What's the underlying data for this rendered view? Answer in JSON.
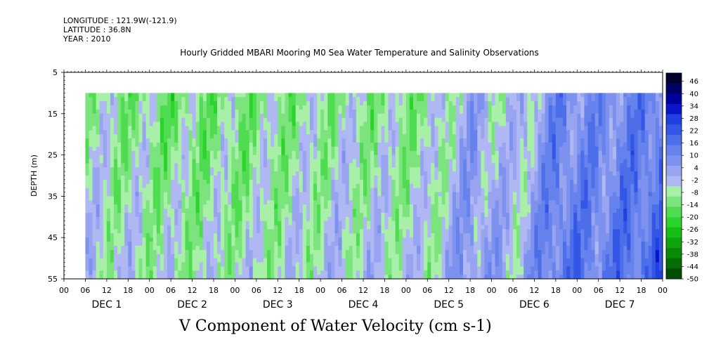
{
  "header": {
    "longitude": "LONGITUDE : 121.9W(-121.9)",
    "latitude": "LATITUDE : 36.8N",
    "year": "YEAR : 2010"
  },
  "chart_data": {
    "type": "heatmap",
    "title": "Hourly Gridded MBARI Mooring M0 Sea Water Temperature and Salinity Observations",
    "bottom_title": "V Component of Water Velocity (cm s-1)",
    "ylabel": "DEPTH (m)",
    "ylim": [
      5,
      55
    ],
    "y_inverted": true,
    "y_ticks": [
      5,
      15,
      25,
      35,
      45,
      55
    ],
    "x_hour_ticks": [
      "00",
      "06",
      "12",
      "18",
      "00",
      "06",
      "12",
      "18",
      "00",
      "06",
      "12",
      "18",
      "00",
      "06",
      "12",
      "18",
      "00",
      "06",
      "12",
      "18",
      "00",
      "06",
      "12",
      "18",
      "00",
      "06",
      "12",
      "18",
      "00"
    ],
    "x_day_labels": [
      "DEC  1",
      "DEC  2",
      "DEC  3",
      "DEC  4",
      "DEC  5",
      "DEC  6",
      "DEC  7"
    ],
    "data_depth_range_m": [
      10,
      55
    ],
    "data_time_range_hours": [
      6,
      168
    ],
    "colorbar": {
      "levels": [
        46,
        40,
        34,
        28,
        22,
        16,
        10,
        4,
        -2,
        -8,
        -14,
        -20,
        -26,
        -32,
        -38,
        -44,
        -50
      ],
      "range": [
        -50,
        50
      ],
      "colors": [
        "#00002e",
        "#000066",
        "#00009c",
        "#0a14c8",
        "#2040e0",
        "#3456e6",
        "#4c6ee8",
        "#6682ec",
        "#7c92ee",
        "#98a4f0",
        "#b0b8f4",
        "#a8f0a8",
        "#7ce47c",
        "#50dc50",
        "#2ad42a",
        "#14c014",
        "#0ea40e",
        "#0a880a",
        "#066c06",
        "#034c03"
      ]
    },
    "time_pattern": [
      {
        "hour": 6,
        "value": -6
      },
      {
        "hour": 30,
        "value": -10
      },
      {
        "hour": 54,
        "value": -9
      },
      {
        "hour": 78,
        "value": -6
      },
      {
        "hour": 102,
        "value": -8
      },
      {
        "hour": 114,
        "value": 4
      },
      {
        "hour": 126,
        "value": -4
      },
      {
        "hour": 138,
        "value": 12
      },
      {
        "hour": 150,
        "value": 10
      },
      {
        "hour": 168,
        "value": 16
      }
    ]
  }
}
